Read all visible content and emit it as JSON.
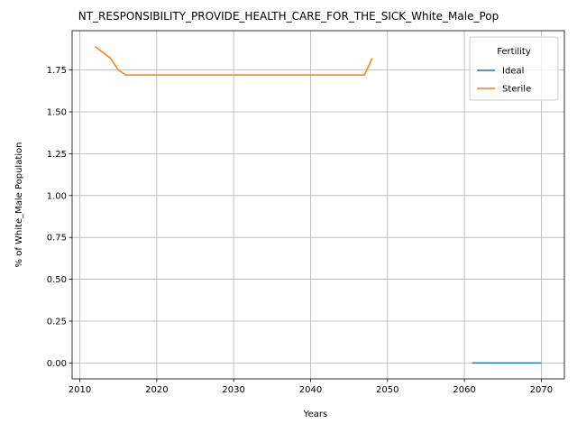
{
  "chart_data": {
    "type": "line",
    "title": "NT_RESPONSIBILITY_PROVIDE_HEALTH_CARE_FOR_THE_SICK_White_Male_Pop",
    "xlabel": "Years",
    "ylabel": "% of White_Male Population",
    "xlim": [
      2009,
      2073
    ],
    "ylim": [
      -0.095,
      1.985
    ],
    "xticks": [
      2010,
      2020,
      2030,
      2040,
      2050,
      2060,
      2070
    ],
    "yticks": [
      0.0,
      0.25,
      0.5,
      0.75,
      1.0,
      1.25,
      1.5,
      1.75
    ],
    "ytick_labels": [
      "0.00",
      "0.25",
      "0.50",
      "0.75",
      "1.00",
      "1.25",
      "1.50",
      "1.75"
    ],
    "grid": true,
    "legend": {
      "title": "Fertility",
      "placement": "top-right"
    },
    "series": [
      {
        "name": "Ideal",
        "color": "#1f77b4",
        "x": [
          2061,
          2062,
          2063,
          2064,
          2065,
          2066,
          2067,
          2068,
          2069,
          2070
        ],
        "y": [
          0.0,
          0.0,
          0.0,
          0.0,
          0.0,
          0.0,
          0.0,
          0.0,
          0.0,
          0.0
        ]
      },
      {
        "name": "Sterile",
        "color": "#ff7f0e",
        "x": [
          2012,
          2013,
          2014,
          2015,
          2016,
          2017,
          2018,
          2019,
          2020,
          2021,
          2022,
          2023,
          2024,
          2025,
          2026,
          2027,
          2028,
          2029,
          2030,
          2031,
          2032,
          2033,
          2034,
          2035,
          2036,
          2037,
          2038,
          2039,
          2040,
          2041,
          2042,
          2043,
          2044,
          2045,
          2046,
          2047,
          2048
        ],
        "y": [
          1.89,
          1.855,
          1.82,
          1.75,
          1.72,
          1.72,
          1.72,
          1.72,
          1.72,
          1.72,
          1.72,
          1.72,
          1.72,
          1.72,
          1.72,
          1.72,
          1.72,
          1.72,
          1.72,
          1.72,
          1.72,
          1.72,
          1.72,
          1.72,
          1.72,
          1.72,
          1.72,
          1.72,
          1.72,
          1.72,
          1.72,
          1.72,
          1.72,
          1.72,
          1.72,
          1.72,
          1.82
        ]
      }
    ]
  }
}
